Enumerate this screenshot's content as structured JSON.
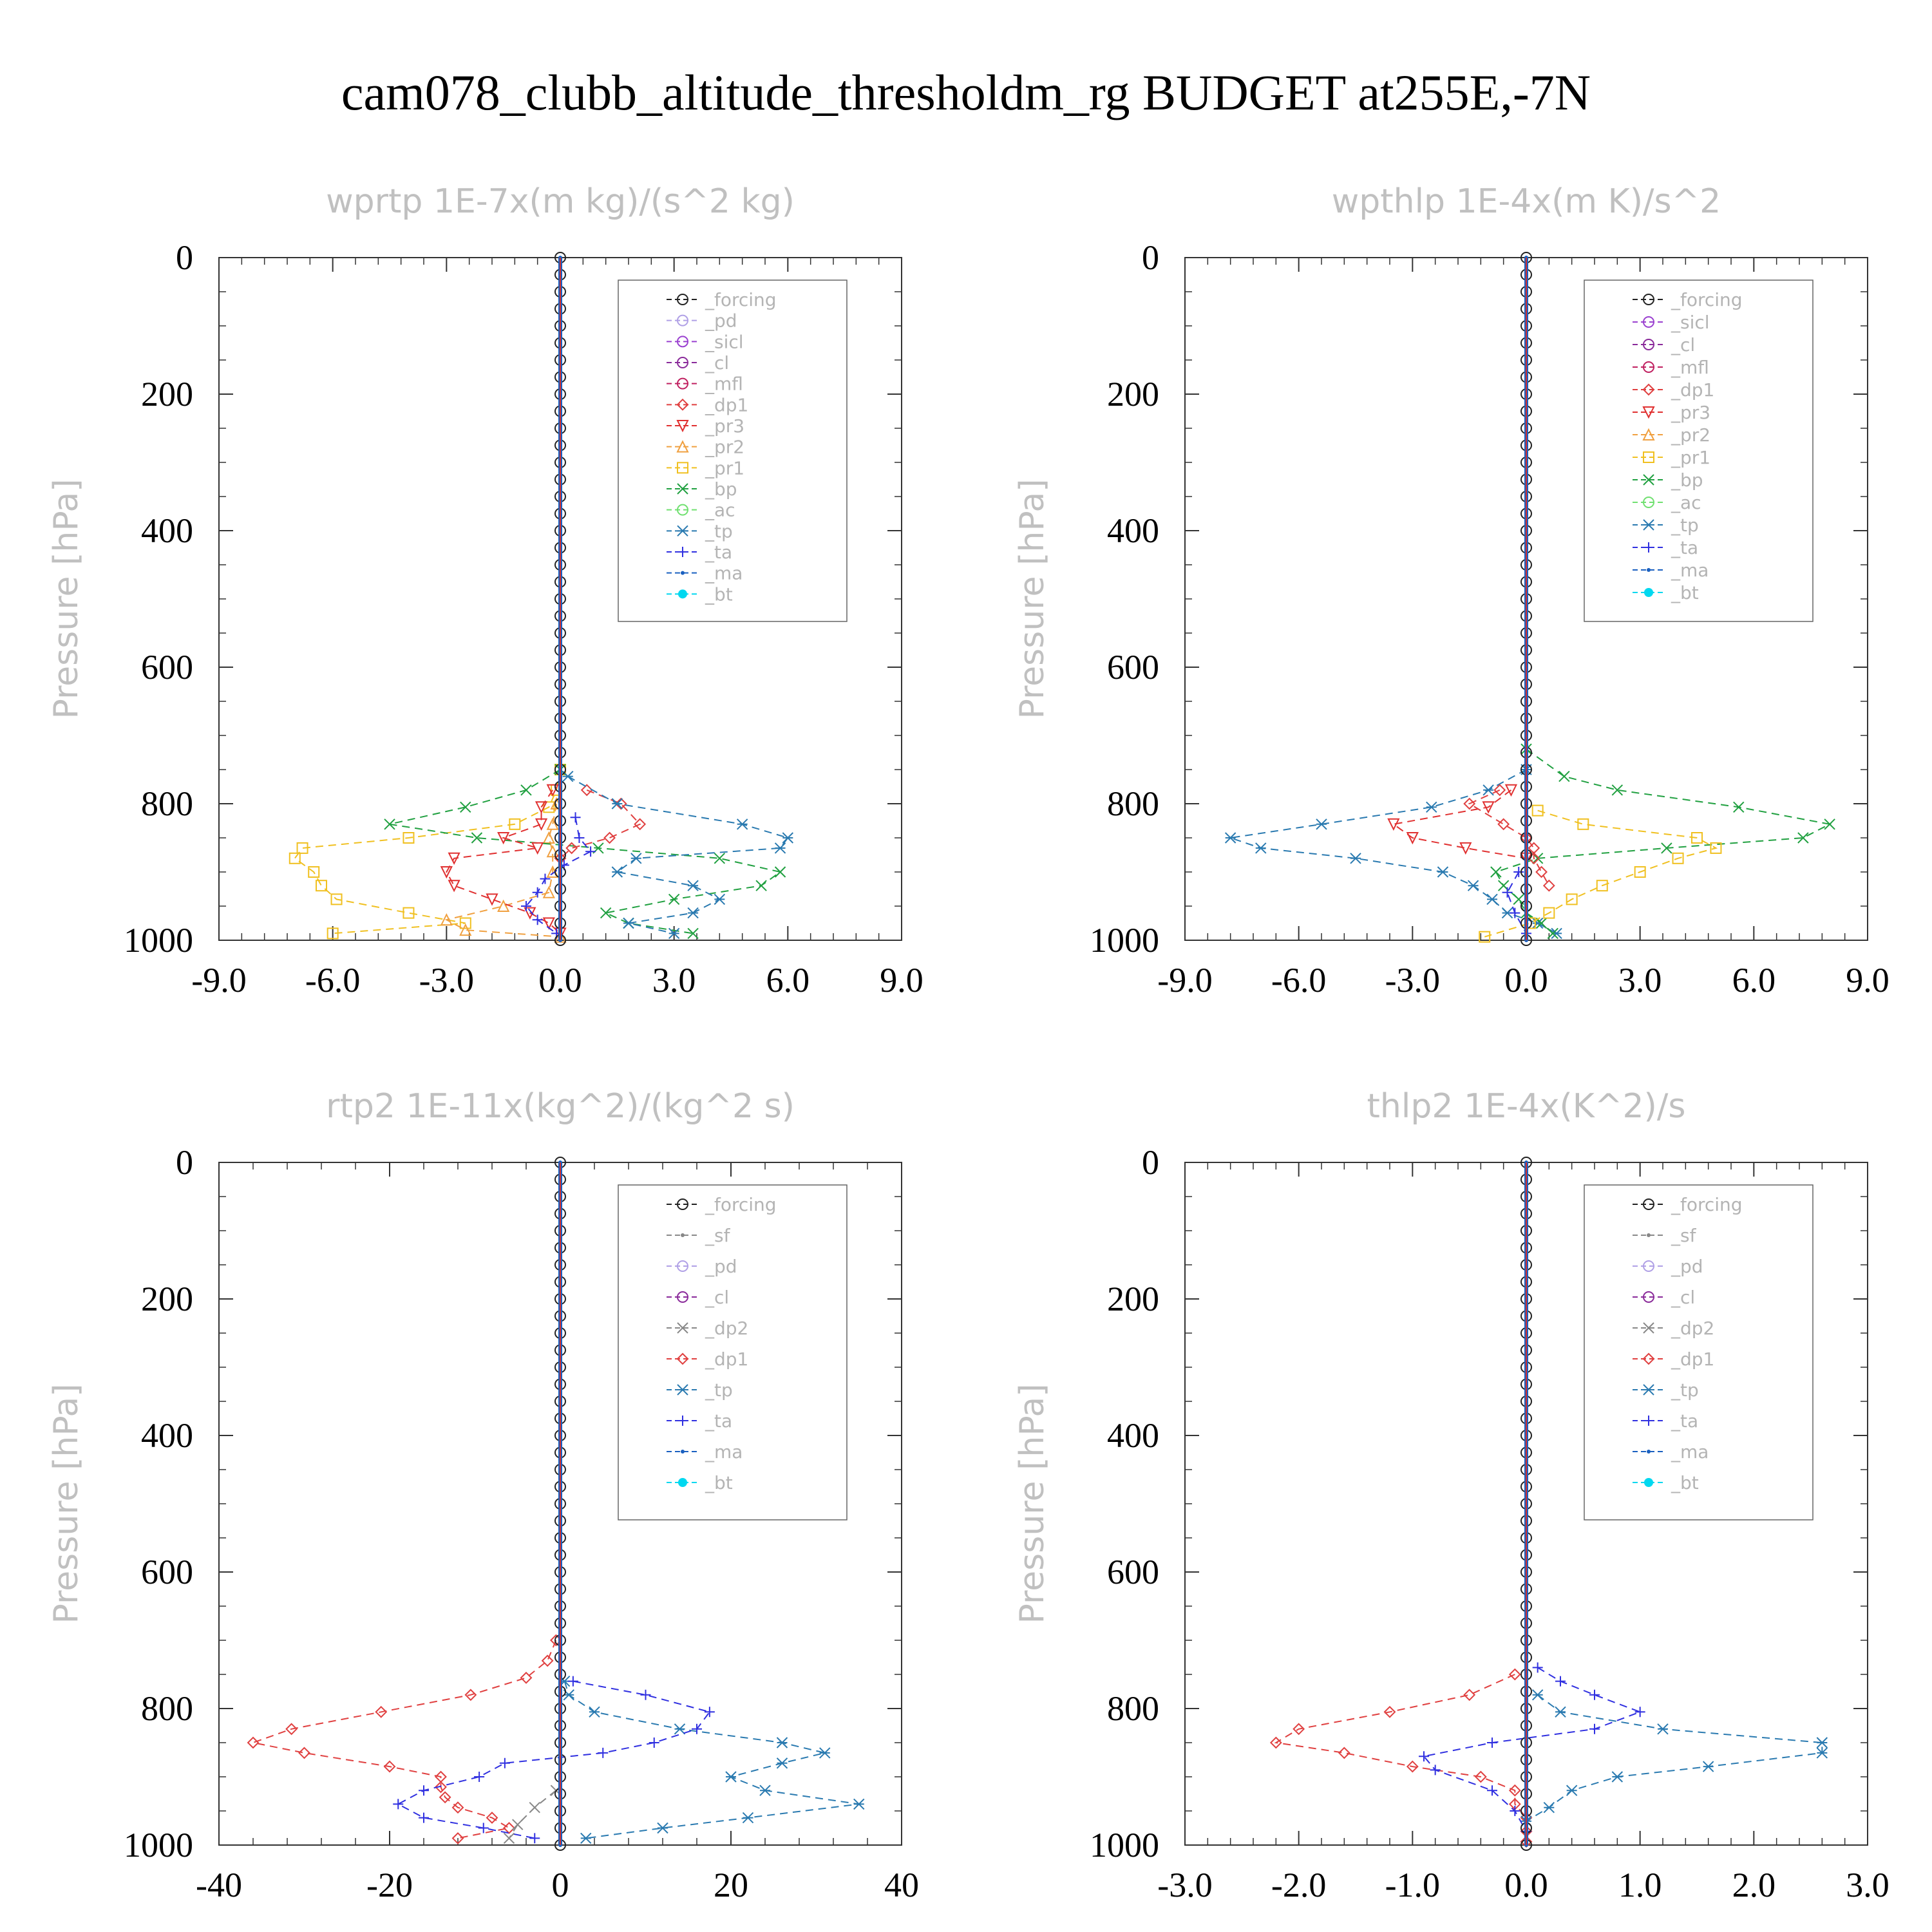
{
  "figure_title": "cam078_clubb_altitude_thresholdm_rg  BUDGET at255E,-7N",
  "colors": {
    "forcing": "#222222",
    "pd": "#b0a0e6",
    "sicl": "#9a40d0",
    "cl": "#8a2a9a",
    "mfl": "#c02060",
    "dp1": "#e04040",
    "pr3": "#e03030",
    "pr2": "#f0a040",
    "pr1": "#f0c020",
    "bp": "#20a040",
    "ac": "#70e070",
    "tp": "#2a7ab0",
    "ta": "#3030e0",
    "ma": "#1a60c0",
    "bt": "#00d8f0"
  },
  "chart_data": [
    {
      "type": "line",
      "title": "wprtp  1E-7x(m kg)/(s^2 kg)",
      "ylabel": "Pressure [hPa]",
      "xlim": [
        -9,
        9
      ],
      "ylim": [
        1000,
        0
      ],
      "xticks": [
        "-9.0",
        "-6.0",
        "-3.0",
        "0.0",
        "3.0",
        "6.0",
        "9.0"
      ],
      "yticks": [
        "0",
        "200",
        "400",
        "600",
        "800",
        "1000"
      ],
      "legend": [
        "_forcing",
        "_pd",
        "_sicl",
        "_cl",
        "_mfl",
        "_dp1",
        "_pr3",
        "_pr2",
        "_pr1",
        "_bp",
        "_ac",
        "_tp",
        "_ta",
        "_ma",
        "_bt"
      ],
      "series": [
        {
          "name": "_pr1",
          "y": [
            750,
            780,
            805,
            830,
            850,
            865,
            880,
            900,
            920,
            940,
            960,
            975,
            990
          ],
          "values": [
            0,
            -0.1,
            -0.3,
            -1.2,
            -4.0,
            -6.8,
            -7.0,
            -6.5,
            -6.3,
            -5.9,
            -4.0,
            -2.5,
            -6.0
          ]
        },
        {
          "name": "_pr2",
          "y": [
            800,
            830,
            850,
            870,
            900,
            930,
            950,
            970,
            985,
            995
          ],
          "values": [
            -0.1,
            -0.2,
            -0.3,
            -0.2,
            -0.2,
            -0.3,
            -1.5,
            -3.0,
            -2.5,
            0
          ]
        },
        {
          "name": "_bp",
          "y": [
            750,
            780,
            805,
            830,
            850,
            865,
            880,
            900,
            920,
            940,
            960,
            975,
            990
          ],
          "values": [
            0,
            -0.9,
            -2.5,
            -4.5,
            -2.2,
            1.0,
            4.2,
            5.8,
            5.3,
            3.0,
            1.2,
            1.8,
            3.5
          ]
        },
        {
          "name": "_pr3",
          "y": [
            780,
            805,
            830,
            850,
            865,
            880,
            900,
            920,
            940,
            960,
            975,
            990
          ],
          "values": [
            -0.2,
            -0.5,
            -0.5,
            -1.5,
            -0.6,
            -2.8,
            -3.0,
            -2.8,
            -1.8,
            -0.8,
            -0.3,
            0
          ]
        },
        {
          "name": "_dp1",
          "y": [
            780,
            800,
            830,
            850,
            865,
            880
          ],
          "values": [
            0.7,
            1.6,
            2.1,
            1.3,
            0.3,
            0
          ]
        },
        {
          "name": "_tp",
          "y": [
            760,
            800,
            830,
            850,
            865,
            880,
            900,
            920,
            940,
            960,
            975,
            990
          ],
          "values": [
            0.2,
            1.5,
            4.8,
            6.0,
            5.8,
            2.0,
            1.5,
            3.5,
            4.2,
            3.5,
            1.8,
            3.0
          ]
        },
        {
          "name": "_ta",
          "y": [
            820,
            850,
            870,
            890,
            910,
            930,
            950,
            970,
            990
          ],
          "values": [
            0.4,
            0.5,
            0.8,
            0.1,
            -0.4,
            -0.6,
            -0.9,
            -0.6,
            -0.1
          ]
        },
        {
          "name": "_forcing",
          "y": [
            0,
            1000
          ],
          "values": [
            0,
            0
          ]
        },
        {
          "name": "_ma",
          "y": [
            0,
            1000
          ],
          "values": [
            0,
            0
          ]
        }
      ]
    },
    {
      "type": "line",
      "title": "wpthlp  1E-4x(m K)/s^2",
      "ylabel": "Pressure [hPa]",
      "xlim": [
        -9,
        9
      ],
      "ylim": [
        1000,
        0
      ],
      "xticks": [
        "-9.0",
        "-6.0",
        "-3.0",
        "0.0",
        "3.0",
        "6.0",
        "9.0"
      ],
      "yticks": [
        "0",
        "200",
        "400",
        "600",
        "800",
        "1000"
      ],
      "legend": [
        "_forcing",
        "_sicl",
        "_cl",
        "_mfl",
        "_dp1",
        "_pr3",
        "_pr2",
        "_pr1",
        "_bp",
        "_ac",
        "_tp",
        "_ta",
        "_ma",
        "_bt"
      ],
      "series": [
        {
          "name": "_tp",
          "y": [
            750,
            780,
            805,
            830,
            850,
            865,
            880,
            900,
            920,
            940,
            960,
            975,
            990
          ],
          "values": [
            0,
            -1.0,
            -2.5,
            -5.4,
            -7.8,
            -7.0,
            -4.5,
            -2.2,
            -1.4,
            -0.9,
            -0.5,
            0.3,
            0.8
          ]
        },
        {
          "name": "_bp",
          "y": [
            720,
            760,
            780,
            805,
            830,
            850,
            865,
            880,
            900,
            920,
            940,
            960,
            975,
            990
          ],
          "values": [
            0,
            1.0,
            2.4,
            5.6,
            8.0,
            7.3,
            3.7,
            0.3,
            -0.8,
            -0.6,
            -0.2,
            0,
            0.4,
            0.7
          ]
        },
        {
          "name": "_pr1",
          "y": [
            810,
            830,
            850,
            865,
            880,
            900,
            920,
            940,
            960,
            975,
            995
          ],
          "values": [
            0.3,
            1.5,
            4.5,
            5.0,
            4.0,
            3.0,
            2.0,
            1.2,
            0.6,
            0.1,
            -1.1
          ]
        },
        {
          "name": "_pr3",
          "y": [
            780,
            805,
            830,
            850,
            865,
            880
          ],
          "values": [
            -0.4,
            -1.0,
            -3.5,
            -3.0,
            -1.6,
            0
          ]
        },
        {
          "name": "_dp1",
          "y": [
            780,
            800,
            830,
            850,
            865,
            880,
            900,
            920
          ],
          "values": [
            -0.7,
            -1.5,
            -0.6,
            0,
            0.2,
            0.2,
            0.4,
            0.6
          ]
        },
        {
          "name": "_ta",
          "y": [
            900,
            930,
            960,
            990
          ],
          "values": [
            -0.2,
            -0.5,
            -0.3,
            0
          ]
        },
        {
          "name": "_forcing",
          "y": [
            0,
            1000
          ],
          "values": [
            0,
            0
          ]
        },
        {
          "name": "_ma",
          "y": [
            0,
            1000
          ],
          "values": [
            0,
            0
          ]
        }
      ]
    },
    {
      "type": "line",
      "title": "rtp2  1E-11x(kg^2)/(kg^2 s)",
      "ylabel": "Pressure [hPa]",
      "xlim": [
        -40,
        40
      ],
      "ylim": [
        1000,
        0
      ],
      "xticks": [
        "-40",
        "-20",
        "0",
        "20",
        "40"
      ],
      "yticks": [
        "0",
        "200",
        "400",
        "600",
        "800",
        "1000"
      ],
      "legend": [
        "_forcing",
        "_sf",
        "_pd",
        "_cl",
        "_dp2",
        "_dp1",
        "_tp",
        "_ta",
        "_ma",
        "_bt"
      ],
      "series": [
        {
          "name": "_dp1",
          "y": [
            700,
            730,
            755,
            780,
            805,
            830,
            850,
            865,
            885,
            900,
            915,
            930,
            945,
            960,
            975,
            990
          ],
          "values": [
            -0.5,
            -1.5,
            -4.0,
            -10.5,
            -21.0,
            -31.5,
            -36.0,
            -30.0,
            -20.0,
            -14.0,
            -14.0,
            -13.5,
            -12.0,
            -8.0,
            -6.0,
            -12.0
          ]
        },
        {
          "name": "_tp",
          "y": [
            760,
            780,
            805,
            830,
            850,
            865,
            880,
            900,
            920,
            940,
            960,
            975,
            990
          ],
          "values": [
            0.5,
            1.0,
            4.0,
            14.0,
            26.0,
            31.0,
            26.0,
            20.0,
            24.0,
            35.0,
            22.0,
            12.0,
            3.0
          ]
        },
        {
          "name": "_ta",
          "y": [
            760,
            780,
            805,
            830,
            850,
            865,
            880,
            900,
            920,
            940,
            960,
            975,
            990
          ],
          "values": [
            1.5,
            10.0,
            17.5,
            16.0,
            11.0,
            5.0,
            -6.5,
            -9.5,
            -16.0,
            -19.0,
            -16.0,
            -9.0,
            -3.0
          ]
        },
        {
          "name": "_dp2",
          "y": [
            920,
            945,
            970,
            990
          ],
          "values": [
            -0.5,
            -3.0,
            -5.0,
            -6.0
          ]
        },
        {
          "name": "_forcing",
          "y": [
            0,
            1000
          ],
          "values": [
            0,
            0
          ]
        },
        {
          "name": "_ma",
          "y": [
            0,
            1000
          ],
          "values": [
            0,
            0
          ]
        }
      ]
    },
    {
      "type": "line",
      "title": "thlp2  1E-4x(K^2)/s",
      "ylabel": "Pressure [hPa]",
      "xlim": [
        -3,
        3
      ],
      "ylim": [
        1000,
        0
      ],
      "xticks": [
        "-3.0",
        "-2.0",
        "-1.0",
        "0.0",
        "1.0",
        "2.0",
        "3.0"
      ],
      "yticks": [
        "0",
        "200",
        "400",
        "600",
        "800",
        "1000"
      ],
      "legend": [
        "_forcing",
        "_sf",
        "_pd",
        "_cl",
        "_dp2",
        "_dp1",
        "_tp",
        "_ta",
        "_ma",
        "_bt"
      ],
      "series": [
        {
          "name": "_dp1",
          "y": [
            750,
            780,
            805,
            830,
            850,
            865,
            885,
            900,
            920,
            940,
            960,
            980,
            995
          ],
          "values": [
            -0.1,
            -0.5,
            -1.2,
            -2.0,
            -2.2,
            -1.6,
            -1.0,
            -0.4,
            -0.1,
            -0.1,
            0,
            0,
            0
          ]
        },
        {
          "name": "_tp",
          "y": [
            780,
            805,
            830,
            850,
            865,
            885,
            900,
            920,
            945,
            965
          ],
          "values": [
            0.1,
            0.3,
            1.2,
            2.6,
            2.6,
            1.6,
            0.8,
            0.4,
            0.2,
            0
          ]
        },
        {
          "name": "_ta",
          "y": [
            740,
            760,
            780,
            805,
            830,
            850,
            870,
            890,
            920,
            950,
            980
          ],
          "values": [
            0.1,
            0.3,
            0.6,
            1.0,
            0.6,
            -0.3,
            -0.9,
            -0.8,
            -0.3,
            -0.1,
            0
          ]
        },
        {
          "name": "_forcing",
          "y": [
            0,
            1000
          ],
          "values": [
            0,
            0
          ]
        },
        {
          "name": "_ma",
          "y": [
            0,
            1000
          ],
          "values": [
            0,
            0
          ]
        }
      ]
    }
  ]
}
